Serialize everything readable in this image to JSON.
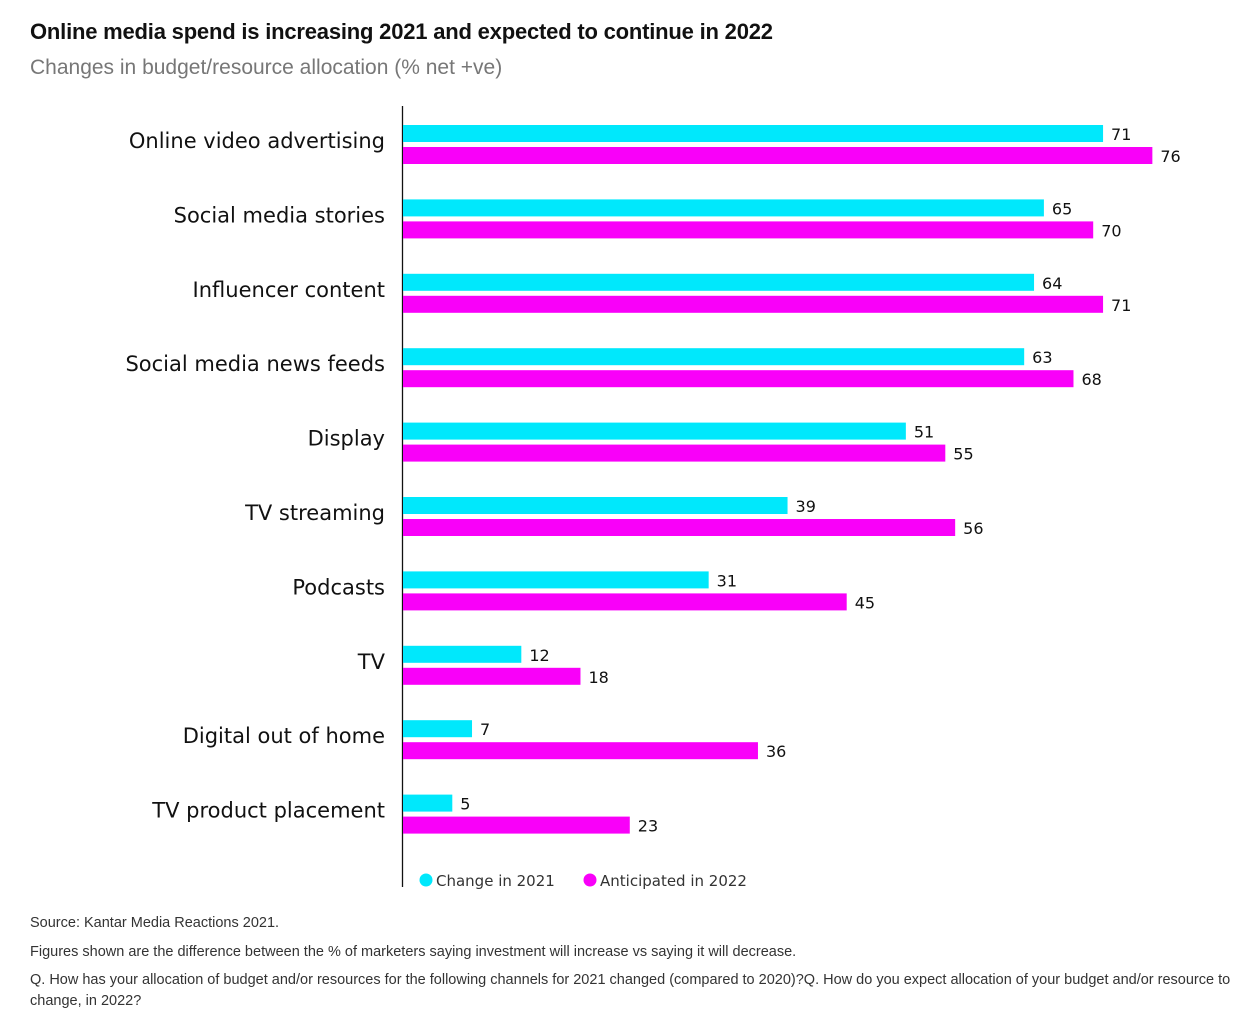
{
  "header": {
    "title": "Online media spend is increasing 2021 and expected to continue in 2022",
    "subtitle": "Changes in budget/resource allocation (% net +ve)"
  },
  "footer": {
    "source": "Source: Kantar Media Reactions 2021.",
    "note": "Figures shown are the difference between the % of marketers saying investment will increase vs saying it will decrease.",
    "question": "Q. How has your allocation of budget and/or resources for the following channels for 2021 changed  (compared to 2020)?Q. How do you expect allocation of your budget and/or resource to change, in 2022?"
  },
  "chart_data": {
    "type": "bar",
    "orientation": "horizontal",
    "title": "Online media spend is increasing 2021 and expected to continue in 2022",
    "subtitle": "Changes in budget/resource allocation (% net +ve)",
    "xlabel": "",
    "ylabel": "",
    "xlim": [
      0,
      85
    ],
    "grid": false,
    "legend_position": "bottom",
    "categories": [
      "Online video advertising",
      "Social media stories",
      "Influencer content",
      "Social media news feeds",
      "Display",
      "TV streaming",
      "Podcasts",
      "TV",
      "Digital out of home",
      "TV product placement"
    ],
    "series": [
      {
        "name": "Change in 2021",
        "color": "#00E8FC",
        "values": [
          71,
          65,
          64,
          63,
          51,
          39,
          31,
          12,
          7,
          5
        ]
      },
      {
        "name": "Anticipated in 2022",
        "color": "#F900F9",
        "values": [
          76,
          70,
          71,
          68,
          55,
          56,
          45,
          18,
          36,
          23
        ]
      }
    ]
  }
}
